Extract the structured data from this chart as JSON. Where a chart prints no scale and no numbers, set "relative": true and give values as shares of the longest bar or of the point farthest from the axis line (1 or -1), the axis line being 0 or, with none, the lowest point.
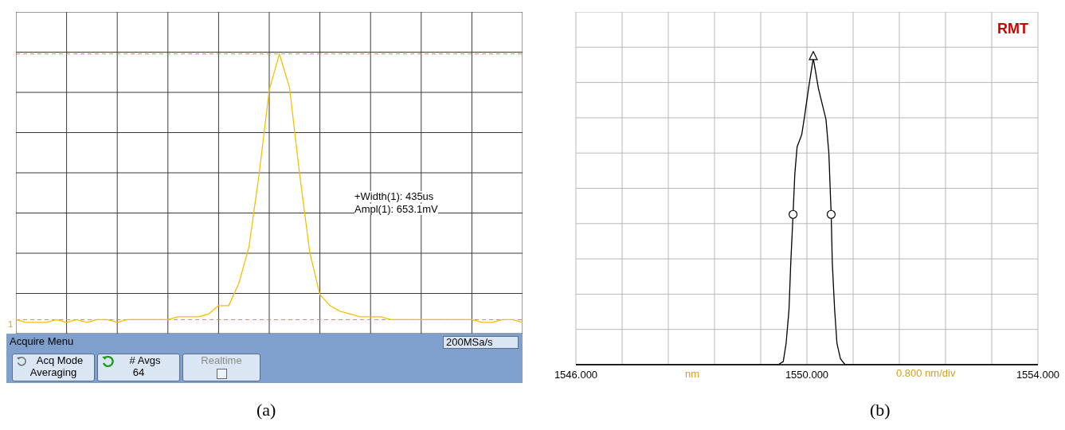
{
  "chart_data": [
    {
      "type": "line",
      "relative": true,
      "grid": true,
      "categories": [
        null,
        null,
        null,
        null,
        null,
        null,
        null,
        null,
        null,
        null,
        null,
        null,
        null,
        null,
        null,
        null,
        null,
        null,
        null,
        null,
        null,
        null,
        null,
        null,
        null,
        null,
        null,
        null,
        null,
        null,
        null,
        null,
        null,
        null,
        null,
        null,
        null,
        null,
        null,
        null,
        null,
        null,
        null,
        null,
        null,
        null,
        null,
        null,
        null,
        null,
        null
      ],
      "series": [
        {
          "color": "#f5c000",
          "values": [
            0.05,
            0.04,
            0.04,
            0.04,
            0.05,
            0.04,
            0.05,
            0.04,
            0.05,
            0.05,
            0.04,
            0.05,
            0.05,
            0.05,
            0.05,
            0.05,
            0.06,
            0.06,
            0.06,
            0.07,
            0.1,
            0.1,
            0.18,
            0.31,
            0.57,
            0.87,
            1,
            0.88,
            0.57,
            0.29,
            0.14,
            0.1,
            0.08,
            0.07,
            0.06,
            0.06,
            0.06,
            0.05,
            0.05,
            0.05,
            0.05,
            0.05,
            0.05,
            0.05,
            0.05,
            0.05,
            0.04,
            0.04,
            0.05,
            0.05,
            0.04
          ]
        }
      ],
      "ref_lines": [
        {
          "axis": "y",
          "value": 1,
          "color": "#f08c00",
          "line_style": "dashed"
        },
        {
          "axis": "y",
          "value": 0.05,
          "color": "#f08c00",
          "line_style": "dashed"
        }
      ],
      "annotations": [
        "+Width(1): 435us",
        "Ampl(1): 653.1mV",
        "Acquire Menu",
        "200MSa/s",
        "Acq Mode",
        "Averaging",
        "# Avgs",
        "64",
        "Realtime",
        "1",
        "(a)"
      ]
    },
    {
      "type": "line",
      "relative": true,
      "grid": true,
      "xlabel": "nm",
      "xlim": [
        1546,
        1554
      ],
      "xticks": [
        {
          "value": 1546,
          "label": "1546.000"
        },
        {
          "value": 1550,
          "label": "1550.000"
        },
        {
          "value": 1554,
          "label": "1554.000"
        }
      ],
      "series": [
        {
          "color": "#000000",
          "marker": "none",
          "x": [
            1546,
            1549.5,
            1549.59,
            1549.64,
            1549.69,
            1549.72,
            1549.76,
            1549.79,
            1549.83,
            1549.91,
            1549.96,
            1550.02,
            1550.11,
            1550.2,
            1550.33,
            1550.38,
            1550.42,
            1550.44,
            1550.48,
            1550.52,
            1550.58,
            1550.66,
            1554
          ],
          "values": [
            0,
            0,
            0.01,
            0.07,
            0.18,
            0.33,
            0.49,
            0.62,
            0.71,
            0.75,
            0.81,
            0.89,
            1,
            0.9,
            0.8,
            0.69,
            0.49,
            0.33,
            0.18,
            0.07,
            0.02,
            0,
            0
          ]
        },
        {
          "type": "scatter",
          "marker": "circle",
          "color": "#000000",
          "x": [
            1549.76,
            1550.42
          ],
          "values": [
            0.49,
            0.49
          ]
        },
        {
          "type": "scatter",
          "marker": "triangle",
          "color": "#000000",
          "x": [
            1550.11
          ],
          "values": [
            1
          ]
        }
      ],
      "annotations": [
        "RMT",
        "0.800 nm/div",
        "(b)"
      ]
    }
  ]
}
